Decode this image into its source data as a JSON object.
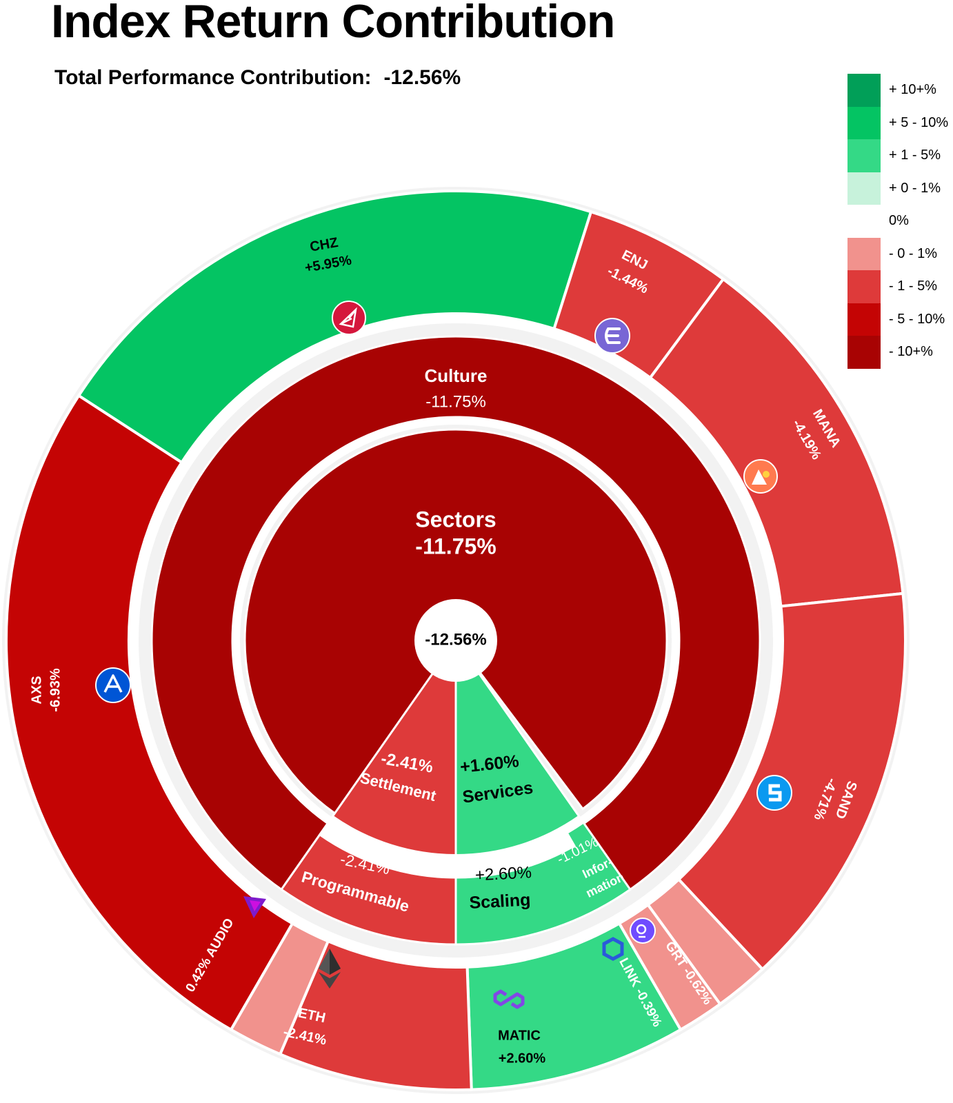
{
  "title": "Index Return Contribution",
  "subtitle": {
    "label": "Total Performance Contribution:",
    "value": "-12.56%"
  },
  "legend": [
    {
      "label": "+ 10+%",
      "color": "#019F58"
    },
    {
      "label": "+ 5 - 10%",
      "color": "#04C463"
    },
    {
      "label": "+ 1 - 5%",
      "color": "#34D986"
    },
    {
      "label": "+ 0 - 1%",
      "color": "#C7F2DB"
    },
    {
      "label": "0%",
      "color": "#FFFFFF"
    },
    {
      "label": "- 0 - 1%",
      "color": "#F1928D"
    },
    {
      "label": "- 1 - 5%",
      "color": "#DE3A3A"
    },
    {
      "label": "- 5 - 10%",
      "color": "#C40404"
    },
    {
      "label": "- 10+%",
      "color": "#A80303"
    }
  ],
  "chart_data": {
    "type": "sunburst",
    "title": "Index Return Contribution",
    "center": {
      "label": "-12.56%",
      "value": -12.56
    },
    "root": {
      "name": "Sectors",
      "value_label": "-11.75%",
      "value": -11.75
    },
    "middle": [
      {
        "name": "Culture",
        "value_label": "-11.75%",
        "value": -11.75,
        "color": "#A80303"
      },
      {
        "name": "Settlement",
        "value_label": "-2.41%",
        "value": -2.41,
        "color": "#DE3A3A"
      },
      {
        "name": "Services",
        "value_label": "+1.60%",
        "value": 1.6,
        "color": "#34D986"
      }
    ],
    "sub": [
      {
        "name": "Programmable",
        "value_label": "-2.41%",
        "value": -2.41,
        "color": "#DE3A3A"
      },
      {
        "name": "Scaling",
        "value_label": "+2.60%",
        "value": 2.6,
        "color": "#34D986"
      },
      {
        "name": "Infor-",
        "name2": "mation",
        "value_label": "-1.01%",
        "value": -1.01,
        "color": "#DE3A3A"
      }
    ],
    "outer": [
      {
        "name": "CHZ",
        "value_label": "+5.95%",
        "value": 5.95,
        "color": "#04C463",
        "icon": "chz-icon"
      },
      {
        "name": "ENJ",
        "value_label": "-1.44%",
        "value": -1.44,
        "color": "#DE3A3A",
        "icon": "enj-icon"
      },
      {
        "name": "MANA",
        "value_label": "-4.19%",
        "value": -4.19,
        "color": "#DE3A3A",
        "icon": "mana-icon"
      },
      {
        "name": "SAND",
        "value_label": "-4.71%",
        "value": -4.71,
        "color": "#DE3A3A",
        "icon": "sand-icon"
      },
      {
        "name": "GRT",
        "value_label": "-0.62%",
        "value": -0.62,
        "color": "#F1928D",
        "icon": "grt-icon"
      },
      {
        "name": "LINK",
        "value_label": "-0.39%",
        "value": -0.39,
        "color": "#F1928D",
        "icon": "link-icon"
      },
      {
        "name": "MATIC",
        "value_label": "+2.60%",
        "value": 2.6,
        "color": "#34D986",
        "icon": "matic-icon"
      },
      {
        "name": "ETH",
        "value_label": "-2.41%",
        "value": -2.41,
        "color": "#DE3A3A",
        "icon": "eth-icon"
      },
      {
        "name": "AUDIO",
        "value_label": "0.42%",
        "value": 0.42,
        "color": "#F1928D",
        "icon": "audio-icon"
      },
      {
        "name": "AXS",
        "value_label": "-6.93%",
        "value": -6.93,
        "color": "#C40404",
        "icon": "axs-icon"
      }
    ]
  }
}
